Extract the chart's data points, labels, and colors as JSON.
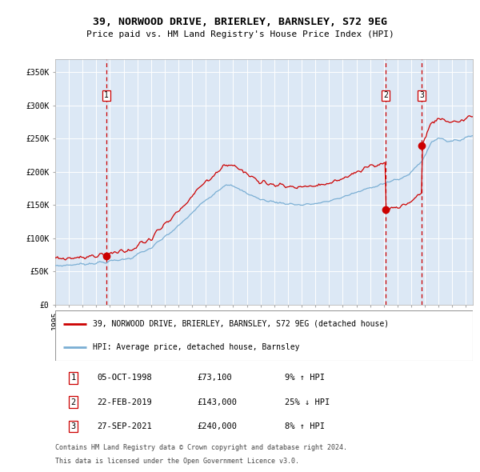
{
  "title": "39, NORWOOD DRIVE, BRIERLEY, BARNSLEY, S72 9EG",
  "subtitle": "Price paid vs. HM Land Registry's House Price Index (HPI)",
  "plot_bg_color": "#dce8f5",
  "red_line_color": "#cc0000",
  "blue_line_color": "#7bafd4",
  "marker_color": "#cc0000",
  "vline_color": "#cc0000",
  "transaction_years": [
    1998.75,
    2019.125,
    2021.75
  ],
  "transaction_prices": [
    73100,
    143000,
    240000
  ],
  "transaction_labels": [
    "1",
    "2",
    "3"
  ],
  "legend_label_red": "39, NORWOOD DRIVE, BRIERLEY, BARNSLEY, S72 9EG (detached house)",
  "legend_label_blue": "HPI: Average price, detached house, Barnsley",
  "table_data": [
    [
      "1",
      "05-OCT-1998",
      "£73,100",
      "9% ↑ HPI"
    ],
    [
      "2",
      "22-FEB-2019",
      "£143,000",
      "25% ↓ HPI"
    ],
    [
      "3",
      "27-SEP-2021",
      "£240,000",
      "8% ↑ HPI"
    ]
  ],
  "footer_line1": "Contains HM Land Registry data © Crown copyright and database right 2024.",
  "footer_line2": "This data is licensed under the Open Government Licence v3.0.",
  "ylim": [
    0,
    370000
  ],
  "yticks": [
    0,
    50000,
    100000,
    150000,
    200000,
    250000,
    300000,
    350000
  ],
  "ytick_labels": [
    "£0",
    "£50K",
    "£100K",
    "£150K",
    "£200K",
    "£250K",
    "£300K",
    "£350K"
  ],
  "xlim": [
    1995.0,
    2025.5
  ]
}
